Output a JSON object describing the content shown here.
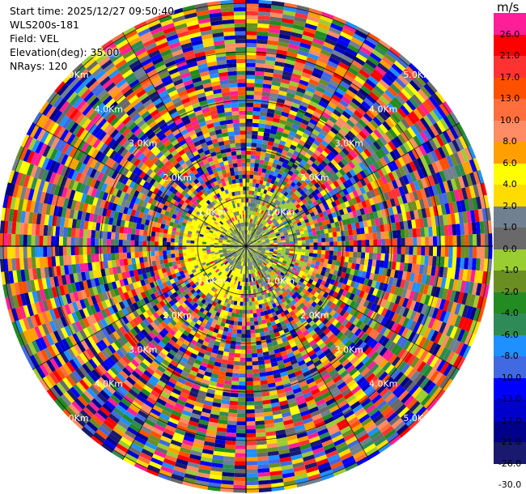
{
  "header": {
    "start_time": "Start time: 2025/12/27 09:50:40",
    "instrument": "WLS200s-181",
    "field": "Field: VEL",
    "elevation": "Elevation(deg): 35.00",
    "nrays": "NRays: 120"
  },
  "colorbar": {
    "unit": "m/s",
    "bins": [
      {
        "label": "26.0",
        "color": "#ff1e96",
        "text": "#000000"
      },
      {
        "label": "21.0",
        "color": "#ff0000",
        "text": "#000000"
      },
      {
        "label": "17.0",
        "color": "#ff3232",
        "text": "#000000"
      },
      {
        "label": "13.0",
        "color": "#ff5000",
        "text": "#000000"
      },
      {
        "label": "10.0",
        "color": "#ff6e3c",
        "text": "#000000"
      },
      {
        "label": "8.0",
        "color": "#ff8c64",
        "text": "#000000"
      },
      {
        "label": "6.0",
        "color": "#ffa000",
        "text": "#000000"
      },
      {
        "label": "4.0",
        "color": "#ffff00",
        "text": "#000000"
      },
      {
        "label": "2.0",
        "color": "#ffdc00",
        "text": "#000000"
      },
      {
        "label": "1.0",
        "color": "#708090",
        "text": "#000000"
      },
      {
        "label": "0.0",
        "color": "#696969",
        "text": "#000000"
      },
      {
        "label": "-1.0",
        "color": "#9acd32",
        "text": "#000000"
      },
      {
        "label": "-2.0",
        "color": "#6b8e23",
        "text": "#000000"
      },
      {
        "label": "-4.0",
        "color": "#228b22",
        "text": "#000000"
      },
      {
        "label": "-6.0",
        "color": "#2e8b57",
        "text": "#000000"
      },
      {
        "label": "-8.0",
        "color": "#1e90ff",
        "text": "#000000"
      },
      {
        "label": "-10.0",
        "color": "#4169e1",
        "text": "#000000"
      },
      {
        "label": "-13.0",
        "color": "#0000ff",
        "text": "#000000"
      },
      {
        "label": "-17.0",
        "color": "#0000cd",
        "text": "#000000"
      },
      {
        "label": "-21.0",
        "color": "#00008b",
        "text": "#000000"
      },
      {
        "label": "-26.0",
        "color": "#191970",
        "text": "#000000"
      },
      {
        "label": "-30.0",
        "color": "#ffffff",
        "text": "#000000"
      }
    ]
  },
  "range_rings": [
    {
      "label": "1.0Km"
    },
    {
      "label": "2.0Km"
    },
    {
      "label": "3.0Km"
    },
    {
      "label": "4.0Km"
    },
    {
      "label": "5.0Km"
    }
  ]
}
